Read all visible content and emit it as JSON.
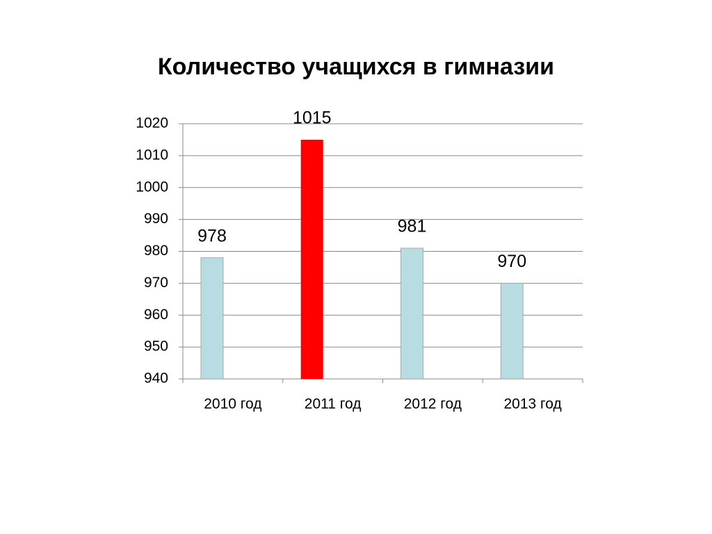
{
  "chart_data": {
    "type": "bar",
    "title": "Количество учащихся в гимназии",
    "categories": [
      "2010 год",
      "2011 год",
      "2012 год",
      "2013 год"
    ],
    "values": [
      978,
      1015,
      981,
      970
    ],
    "colors": [
      "#b7dde2",
      "#ff0000",
      "#b7dde2",
      "#b7dde2"
    ],
    "ylim": [
      940,
      1020
    ],
    "yticks": [
      940,
      950,
      960,
      970,
      980,
      990,
      1000,
      1010,
      1020
    ],
    "grid": true
  }
}
